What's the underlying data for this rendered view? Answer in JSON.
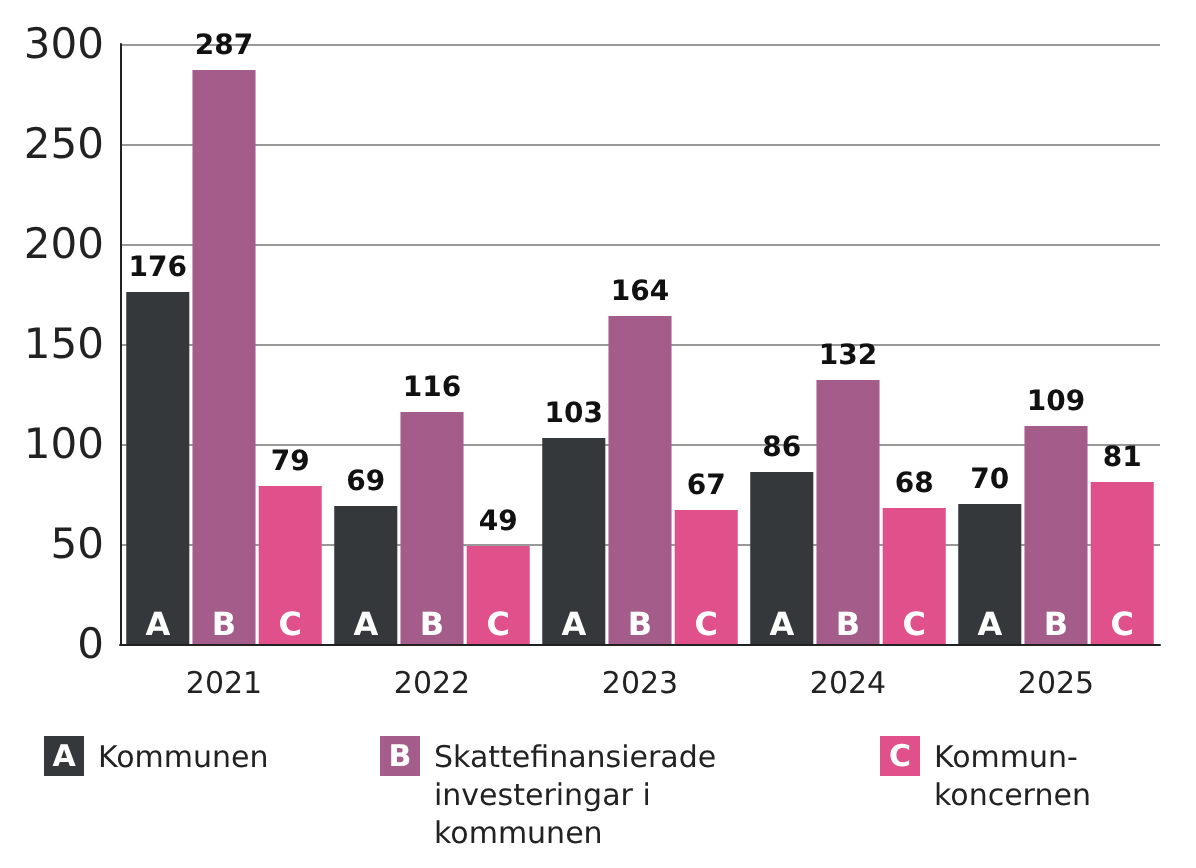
{
  "chart_data": {
    "type": "bar",
    "categories": [
      "2021",
      "2022",
      "2023",
      "2024",
      "2025"
    ],
    "series": [
      {
        "name": "Kommunen",
        "color": "#35383b",
        "values": [
          176,
          69,
          103,
          86,
          70
        ]
      },
      {
        "name": "Skattefinansierade investeringar i kommunen",
        "color": "#a45d8b",
        "values": [
          287,
          116,
          164,
          132,
          109
        ]
      },
      {
        "name": "Kommun-koncernen",
        "color": "#e0508a",
        "values": [
          79,
          49,
          67,
          68,
          81
        ]
      }
    ],
    "annotations": [
      "A",
      "B",
      "C"
    ],
    "ylim": [
      0,
      300
    ],
    "yticks": [
      0,
      50,
      100,
      150,
      200,
      250,
      300
    ],
    "grid": "y",
    "legend": "bottom",
    "data_labels": true
  }
}
